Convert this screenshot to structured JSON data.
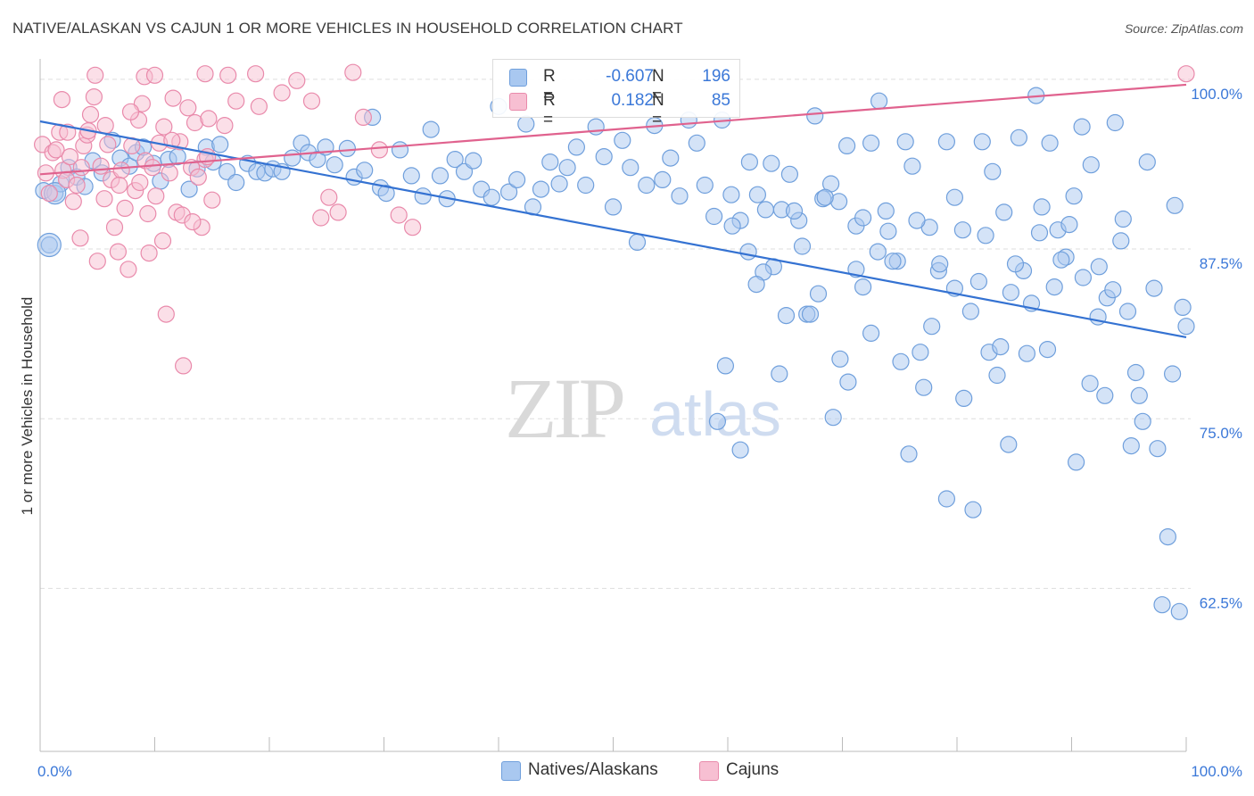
{
  "title": "NATIVE/ALASKAN VS CAJUN 1 OR MORE VEHICLES IN HOUSEHOLD CORRELATION CHART",
  "source": "Source: ZipAtlas.com",
  "watermark": {
    "zip": "ZIP",
    "atlas": "atlas"
  },
  "colors": {
    "blue_fill": "#a9c8f0",
    "blue_stroke": "#6f9fdc",
    "blue_line": "#3472d2",
    "pink_fill": "#f7bfd2",
    "pink_stroke": "#e98aab",
    "pink_line": "#e0628e",
    "axis_text": "#3b78d8",
    "grid": "#dddddd"
  },
  "legend": {
    "rows": [
      {
        "series": "Natives/Alaskans",
        "r_label": "R =",
        "r_value": "-0.607",
        "n_label": "N =",
        "n_value": "196"
      },
      {
        "series": "Cajuns",
        "r_label": "R =",
        "r_value": "0.182",
        "n_label": "N =",
        "n_value": "85"
      }
    ]
  },
  "bottom_legend": {
    "items": [
      "Natives/Alaskans",
      "Cajuns"
    ]
  },
  "chart_data": {
    "type": "scatter",
    "title": "NATIVE/ALASKAN VS CAJUN 1 OR MORE VEHICLES IN HOUSEHOLD CORRELATION CHART",
    "xlabel": "",
    "ylabel": "1 or more Vehicles in Household",
    "xlim": [
      0,
      100
    ],
    "ylim": [
      50.5,
      101.5
    ],
    "x_tick_labels": [
      "0.0%",
      "100.0%"
    ],
    "y_ticks": [
      62.5,
      75.0,
      87.5,
      100.0
    ],
    "y_tick_labels": [
      "62.5%",
      "75.0%",
      "87.5%",
      "100.0%"
    ],
    "grid": true,
    "series": [
      {
        "name": "Natives/Alaskans",
        "r": -0.607,
        "n": 196,
        "trend": {
          "x": [
            0,
            100
          ],
          "y": [
            96.9,
            81.0
          ]
        },
        "points": [
          [
            0.3,
            91.8
          ],
          [
            0.8,
            87.8
          ],
          [
            1.3,
            91.6
          ],
          [
            1.8,
            92.3
          ],
          [
            2.5,
            93.5
          ],
          [
            3.2,
            92.8
          ],
          [
            3.9,
            92.1
          ],
          [
            4.6,
            94.0
          ],
          [
            5.4,
            93.1
          ],
          [
            6.3,
            95.5
          ],
          [
            7.0,
            94.2
          ],
          [
            7.8,
            93.6
          ],
          [
            8.4,
            94.6
          ],
          [
            9.0,
            95.0
          ],
          [
            9.9,
            93.8
          ],
          [
            10.5,
            92.5
          ],
          [
            11.2,
            94.1
          ],
          [
            12.0,
            94.3
          ],
          [
            13.0,
            91.9
          ],
          [
            13.7,
            93.4
          ],
          [
            14.5,
            95.0
          ],
          [
            15.1,
            93.9
          ],
          [
            15.7,
            95.2
          ],
          [
            16.3,
            93.2
          ],
          [
            17.1,
            92.4
          ],
          [
            18.1,
            93.8
          ],
          [
            18.9,
            93.2
          ],
          [
            19.6,
            93.1
          ],
          [
            20.3,
            93.4
          ],
          [
            21.1,
            93.2
          ],
          [
            22.0,
            94.2
          ],
          [
            22.8,
            95.3
          ],
          [
            23.4,
            94.6
          ],
          [
            24.2,
            94.1
          ],
          [
            24.9,
            95.0
          ],
          [
            25.7,
            93.7
          ],
          [
            26.8,
            94.9
          ],
          [
            27.4,
            92.8
          ],
          [
            28.3,
            93.3
          ],
          [
            29.0,
            97.2
          ],
          [
            29.7,
            92.0
          ],
          [
            30.2,
            91.6
          ],
          [
            31.4,
            94.8
          ],
          [
            32.4,
            92.9
          ],
          [
            33.4,
            91.4
          ],
          [
            34.1,
            96.3
          ],
          [
            34.9,
            92.9
          ],
          [
            35.5,
            91.2
          ],
          [
            36.2,
            94.1
          ],
          [
            37.0,
            93.2
          ],
          [
            37.8,
            94.0
          ],
          [
            38.5,
            91.9
          ],
          [
            39.4,
            91.3
          ],
          [
            40.0,
            98.0
          ],
          [
            40.9,
            91.7
          ],
          [
            41.6,
            92.6
          ],
          [
            42.4,
            96.7
          ],
          [
            43.0,
            90.6
          ],
          [
            43.7,
            91.9
          ],
          [
            44.5,
            93.9
          ],
          [
            45.3,
            92.3
          ],
          [
            46.0,
            93.5
          ],
          [
            46.8,
            95.0
          ],
          [
            47.6,
            92.2
          ],
          [
            48.5,
            96.5
          ],
          [
            49.2,
            94.3
          ],
          [
            50.0,
            90.6
          ],
          [
            50.8,
            95.5
          ],
          [
            51.5,
            93.5
          ],
          [
            52.1,
            88.0
          ],
          [
            52.9,
            92.2
          ],
          [
            53.6,
            96.6
          ],
          [
            54.3,
            92.6
          ],
          [
            55.0,
            94.2
          ],
          [
            55.8,
            91.4
          ],
          [
            56.6,
            97.0
          ],
          [
            57.3,
            95.3
          ],
          [
            58.0,
            92.2
          ],
          [
            58.8,
            89.9
          ],
          [
            59.5,
            97.0
          ],
          [
            60.3,
            91.5
          ],
          [
            61.1,
            89.6
          ],
          [
            61.9,
            93.9
          ],
          [
            62.6,
            91.5
          ],
          [
            63.3,
            90.4
          ],
          [
            64.0,
            86.2
          ],
          [
            64.7,
            90.4
          ],
          [
            65.4,
            93.0
          ],
          [
            66.2,
            89.6
          ],
          [
            66.9,
            82.7
          ],
          [
            67.6,
            97.3
          ],
          [
            68.3,
            91.2
          ],
          [
            69.0,
            92.3
          ],
          [
            69.7,
            91.0
          ],
          [
            70.4,
            95.1
          ],
          [
            71.2,
            89.2
          ],
          [
            71.8,
            84.7
          ],
          [
            72.5,
            95.3
          ],
          [
            73.2,
            98.4
          ],
          [
            74.0,
            88.8
          ],
          [
            74.8,
            86.6
          ],
          [
            75.5,
            95.4
          ],
          [
            76.1,
            93.6
          ],
          [
            76.8,
            79.9
          ],
          [
            77.6,
            89.1
          ],
          [
            78.4,
            85.9
          ],
          [
            79.1,
            95.4
          ],
          [
            79.8,
            91.3
          ],
          [
            80.6,
            76.5
          ],
          [
            81.4,
            68.3
          ],
          [
            82.2,
            95.4
          ],
          [
            82.8,
            79.9
          ],
          [
            83.5,
            78.2
          ],
          [
            84.1,
            90.2
          ],
          [
            84.7,
            84.3
          ],
          [
            85.4,
            95.7
          ],
          [
            86.1,
            79.8
          ],
          [
            86.9,
            98.8
          ],
          [
            87.4,
            90.6
          ],
          [
            88.1,
            95.3
          ],
          [
            88.8,
            88.9
          ],
          [
            89.5,
            86.9
          ],
          [
            90.2,
            91.4
          ],
          [
            90.9,
            96.5
          ],
          [
            91.6,
            77.6
          ],
          [
            92.4,
            86.2
          ],
          [
            93.1,
            83.9
          ],
          [
            93.8,
            96.8
          ],
          [
            94.5,
            89.7
          ],
          [
            95.2,
            73.0
          ],
          [
            95.9,
            76.7
          ],
          [
            96.6,
            93.9
          ],
          [
            97.2,
            84.6
          ],
          [
            97.9,
            61.3
          ],
          [
            98.4,
            66.3
          ],
          [
            99.0,
            90.7
          ],
          [
            99.4,
            60.8
          ],
          [
            99.7,
            83.2
          ],
          [
            100.0,
            81.8
          ],
          [
            98.8,
            78.3
          ],
          [
            97.5,
            72.8
          ],
          [
            96.2,
            74.8
          ],
          [
            95.6,
            78.4
          ],
          [
            94.9,
            82.9
          ],
          [
            94.3,
            88.1
          ],
          [
            93.6,
            84.5
          ],
          [
            92.9,
            76.7
          ],
          [
            92.3,
            82.5
          ],
          [
            91.7,
            93.7
          ],
          [
            91.0,
            85.4
          ],
          [
            90.4,
            71.8
          ],
          [
            89.8,
            89.3
          ],
          [
            89.1,
            86.7
          ],
          [
            88.5,
            84.7
          ],
          [
            87.9,
            80.1
          ],
          [
            87.2,
            88.7
          ],
          [
            86.5,
            83.5
          ],
          [
            85.8,
            85.9
          ],
          [
            85.1,
            86.4
          ],
          [
            84.5,
            73.1
          ],
          [
            83.8,
            80.3
          ],
          [
            83.1,
            93.2
          ],
          [
            82.5,
            88.5
          ],
          [
            81.9,
            85.1
          ],
          [
            81.2,
            82.9
          ],
          [
            80.5,
            88.9
          ],
          [
            79.8,
            84.6
          ],
          [
            79.1,
            69.1
          ],
          [
            78.5,
            86.4
          ],
          [
            77.8,
            81.8
          ],
          [
            77.1,
            77.3
          ],
          [
            76.5,
            89.6
          ],
          [
            75.8,
            72.4
          ],
          [
            75.1,
            79.2
          ],
          [
            74.4,
            86.6
          ],
          [
            73.8,
            90.3
          ],
          [
            73.1,
            87.3
          ],
          [
            72.5,
            81.3
          ],
          [
            71.8,
            89.8
          ],
          [
            71.2,
            86.0
          ],
          [
            70.5,
            77.7
          ],
          [
            69.8,
            79.4
          ],
          [
            69.2,
            75.1
          ],
          [
            68.5,
            91.3
          ],
          [
            67.9,
            84.2
          ],
          [
            67.2,
            82.7
          ],
          [
            66.5,
            87.7
          ],
          [
            65.8,
            90.3
          ],
          [
            65.1,
            82.6
          ],
          [
            64.5,
            78.3
          ],
          [
            63.8,
            93.8
          ],
          [
            63.1,
            85.8
          ],
          [
            62.5,
            84.9
          ],
          [
            61.8,
            87.3
          ],
          [
            61.1,
            72.7
          ],
          [
            60.4,
            89.2
          ],
          [
            59.8,
            78.9
          ],
          [
            59.1,
            74.8
          ]
        ]
      },
      {
        "name": "Cajuns",
        "r": 0.182,
        "n": 85,
        "trend": {
          "x": [
            0,
            100
          ],
          "y": [
            93.0,
            99.6
          ]
        },
        "points": [
          [
            0.2,
            95.2
          ],
          [
            0.5,
            93.1
          ],
          [
            0.8,
            91.6
          ],
          [
            1.1,
            94.6
          ],
          [
            1.4,
            94.8
          ],
          [
            1.7,
            96.1
          ],
          [
            2.0,
            93.3
          ],
          [
            2.3,
            92.6
          ],
          [
            2.6,
            94.3
          ],
          [
            2.9,
            91.0
          ],
          [
            3.2,
            92.2
          ],
          [
            3.5,
            88.3
          ],
          [
            3.8,
            95.1
          ],
          [
            4.1,
            95.9
          ],
          [
            4.4,
            97.4
          ],
          [
            4.7,
            98.7
          ],
          [
            5.0,
            86.6
          ],
          [
            5.3,
            93.6
          ],
          [
            5.6,
            91.2
          ],
          [
            5.9,
            95.2
          ],
          [
            6.2,
            92.6
          ],
          [
            6.5,
            89.1
          ],
          [
            6.8,
            87.3
          ],
          [
            7.1,
            93.3
          ],
          [
            7.4,
            90.5
          ],
          [
            7.7,
            86.0
          ],
          [
            8.0,
            95.1
          ],
          [
            8.3,
            91.8
          ],
          [
            8.6,
            97.0
          ],
          [
            8.9,
            98.2
          ],
          [
            9.2,
            94.0
          ],
          [
            9.5,
            87.2
          ],
          [
            9.8,
            93.5
          ],
          [
            10.1,
            91.4
          ],
          [
            10.4,
            95.3
          ],
          [
            10.7,
            88.1
          ],
          [
            11.0,
            82.7
          ],
          [
            11.3,
            93.1
          ],
          [
            11.6,
            98.6
          ],
          [
            11.9,
            90.2
          ],
          [
            12.2,
            95.4
          ],
          [
            12.5,
            78.9
          ],
          [
            12.9,
            97.9
          ],
          [
            13.2,
            93.5
          ],
          [
            13.5,
            96.8
          ],
          [
            13.8,
            92.8
          ],
          [
            14.1,
            89.1
          ],
          [
            14.4,
            94.1
          ],
          [
            14.7,
            97.1
          ],
          [
            15.0,
            91.1
          ],
          [
            4.2,
            96.2
          ],
          [
            5.7,
            96.6
          ],
          [
            2.4,
            96.1
          ],
          [
            3.6,
            93.5
          ],
          [
            6.9,
            92.2
          ],
          [
            7.9,
            97.6
          ],
          [
            8.7,
            92.4
          ],
          [
            9.4,
            90.1
          ],
          [
            10.8,
            96.5
          ],
          [
            11.5,
            95.5
          ],
          [
            12.4,
            90.0
          ],
          [
            13.3,
            89.5
          ],
          [
            14.6,
            94.3
          ],
          [
            16.1,
            96.6
          ],
          [
            17.1,
            98.4
          ],
          [
            18.8,
            100.4
          ],
          [
            19.1,
            98.0
          ],
          [
            21.1,
            99.0
          ],
          [
            22.4,
            99.9
          ],
          [
            23.7,
            98.4
          ],
          [
            24.5,
            89.8
          ],
          [
            25.2,
            91.3
          ],
          [
            26.0,
            90.2
          ],
          [
            27.3,
            100.5
          ],
          [
            28.2,
            97.2
          ],
          [
            29.6,
            94.8
          ],
          [
            31.3,
            90.0
          ],
          [
            32.5,
            89.1
          ],
          [
            1.9,
            98.5
          ],
          [
            4.8,
            100.3
          ],
          [
            9.1,
            100.2
          ],
          [
            10.0,
            100.3
          ],
          [
            14.4,
            100.4
          ],
          [
            16.4,
            100.3
          ],
          [
            100.0,
            100.4
          ]
        ]
      }
    ]
  }
}
